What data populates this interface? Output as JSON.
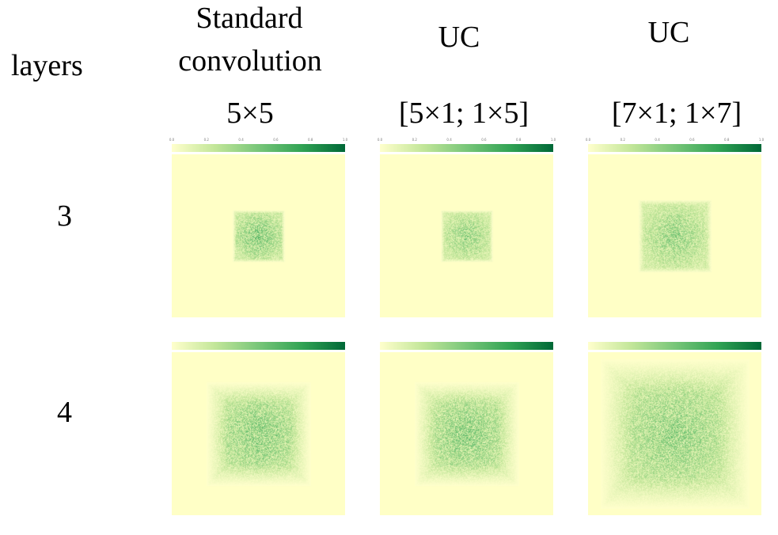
{
  "row_header": "layers",
  "columns": [
    {
      "title_line1": "Standard",
      "title_line2": "convolution",
      "kernel": "5×5"
    },
    {
      "title_line1": "UC",
      "title_line2": "",
      "kernel": "[5×1; 1×5]"
    },
    {
      "title_line1": "UC",
      "title_line2": "",
      "kernel": "[7×1; 1×7]"
    }
  ],
  "rows": [
    {
      "label": "3"
    },
    {
      "label": "4"
    }
  ],
  "colorbar": {
    "ticks": [
      "0.0",
      "0.2",
      "0.4",
      "0.6",
      "0.8",
      "1.0"
    ],
    "colors": [
      "#ffffcc",
      "#c2e699",
      "#78c679",
      "#31a354",
      "#006837"
    ]
  },
  "background_color": "#ffffc6",
  "heatmaps": [
    {
      "row": "3",
      "col": 1,
      "half_width": 0.13,
      "intensity": 0.55,
      "softness": 0.02
    },
    {
      "row": "3",
      "col": 2,
      "half_width": 0.13,
      "intensity": 0.45,
      "softness": 0.02
    },
    {
      "row": "3",
      "col": 3,
      "half_width": 0.18,
      "intensity": 0.45,
      "softness": 0.03
    },
    {
      "row": "4",
      "col": 1,
      "half_width": 0.18,
      "intensity": 0.5,
      "softness": 0.12
    },
    {
      "row": "4",
      "col": 2,
      "half_width": 0.18,
      "intensity": 0.5,
      "softness": 0.12
    },
    {
      "row": "4",
      "col": 3,
      "half_width": 0.25,
      "intensity": 0.45,
      "softness": 0.18
    }
  ]
}
